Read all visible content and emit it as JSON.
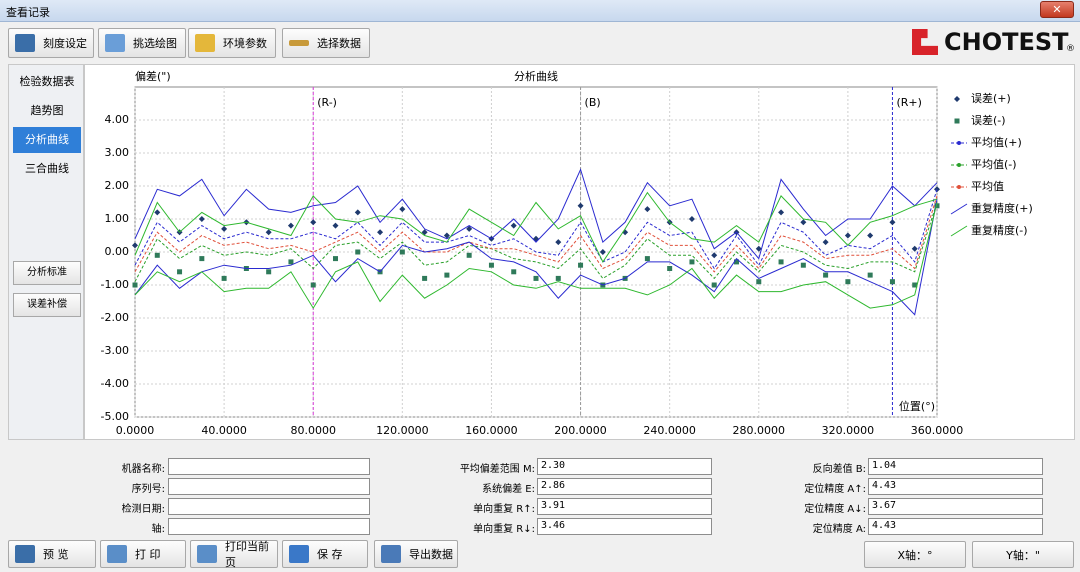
{
  "window": {
    "title": "查看记录"
  },
  "toolbar": [
    "刻度设定",
    "挑选绘图",
    "环境参数",
    "选择数据"
  ],
  "logo": "CHOTEST",
  "logo_mark": "®",
  "sidebar": {
    "tabs": [
      "检验数据表",
      "趋势图",
      "分析曲线",
      "三合曲线"
    ],
    "selected": 2,
    "buttons": [
      "分析标准",
      "误差补偿"
    ]
  },
  "chart_data": {
    "type": "line",
    "title": "分析曲线",
    "y_label": "偏差(\")",
    "x_label": "位置(°)",
    "x": [
      0,
      10,
      20,
      30,
      40,
      50,
      60,
      70,
      80,
      90,
      100,
      110,
      120,
      130,
      140,
      150,
      160,
      170,
      180,
      190,
      200,
      210,
      220,
      230,
      240,
      250,
      260,
      270,
      280,
      290,
      300,
      310,
      320,
      330,
      340,
      350,
      360
    ],
    "xlim": [
      0,
      360
    ],
    "xticks": [
      {
        "value": 0,
        "label": "0.0000"
      },
      {
        "value": 40,
        "label": "40.0000"
      },
      {
        "value": 80,
        "label": "80.0000"
      },
      {
        "value": 120,
        "label": "120.0000"
      },
      {
        "value": 160,
        "label": "160.0000"
      },
      {
        "value": 200,
        "label": "200.0000"
      },
      {
        "value": 240,
        "label": "240.0000"
      },
      {
        "value": 280,
        "label": "280.0000"
      },
      {
        "value": 320,
        "label": "320.0000"
      },
      {
        "value": 360,
        "label": "360.0000"
      }
    ],
    "ylim": [
      -5,
      5
    ],
    "yticks": [
      {
        "value": 4,
        "label": "4.00"
      },
      {
        "value": 3,
        "label": "3.00"
      },
      {
        "value": 2,
        "label": "2.00"
      },
      {
        "value": 1,
        "label": "1.00"
      },
      {
        "value": 0,
        "label": "0.00"
      },
      {
        "value": -1,
        "label": "-1.00"
      },
      {
        "value": -2,
        "label": "-2.00"
      },
      {
        "value": -3,
        "label": "-3.00"
      },
      {
        "value": -4,
        "label": "-4.00"
      },
      {
        "value": -5,
        "label": "-5.00"
      }
    ],
    "grid": true,
    "markers": [
      {
        "label": "(R-)",
        "x": 80,
        "color": "#d63ad6"
      },
      {
        "label": "(B)",
        "x": 200,
        "color": "#999999"
      },
      {
        "label": "(R+)",
        "x": 340,
        "color": "#2a2ad0"
      }
    ],
    "series": [
      {
        "name": "误差(+)",
        "color": "#1f3a6e",
        "style": "diamond",
        "values": [
          0.2,
          1.2,
          0.6,
          1.0,
          0.7,
          0.9,
          0.6,
          0.8,
          0.9,
          0.8,
          1.2,
          0.6,
          1.3,
          0.6,
          0.5,
          0.7,
          0.4,
          0.8,
          0.4,
          0.3,
          1.4,
          0.0,
          0.6,
          1.3,
          0.9,
          1.0,
          -0.1,
          0.6,
          0.1,
          1.2,
          0.9,
          0.3,
          0.5,
          0.5,
          0.9,
          0.1,
          1.9
        ]
      },
      {
        "name": "误差(-)",
        "color": "#2f7a5a",
        "style": "square",
        "values": [
          -1.0,
          -0.1,
          -0.6,
          -0.2,
          -0.8,
          -0.5,
          -0.6,
          -0.3,
          -1.0,
          -0.2,
          0.0,
          -0.6,
          0.0,
          -0.8,
          -0.7,
          -0.1,
          -0.4,
          -0.6,
          -0.8,
          -0.8,
          -0.4,
          -1.0,
          -0.8,
          -0.2,
          -0.5,
          -0.3,
          -1.0,
          -0.3,
          -0.9,
          -0.3,
          -0.4,
          -0.7,
          -0.9,
          -0.7,
          -0.9,
          -1.0,
          1.4
        ]
      },
      {
        "name": "平均值(+)",
        "color": "#2a2ad0",
        "style": "dashed",
        "values": [
          -0.4,
          0.9,
          0.3,
          0.8,
          0.4,
          0.6,
          0.4,
          0.4,
          0.6,
          0.4,
          0.9,
          0.2,
          0.9,
          0.3,
          0.3,
          0.5,
          0.2,
          0.4,
          0.0,
          -0.1,
          0.9,
          -0.3,
          0.0,
          0.9,
          0.5,
          0.6,
          -0.5,
          0.5,
          -0.4,
          0.9,
          0.6,
          -0.1,
          0.2,
          0.1,
          0.5,
          -0.3,
          1.9
        ]
      },
      {
        "name": "平均值(-)",
        "color": "#2aa02a",
        "style": "dashed",
        "values": [
          -0.9,
          0.4,
          -0.2,
          0.2,
          -0.1,
          0.0,
          -0.1,
          0.1,
          -0.5,
          0.2,
          0.3,
          -0.2,
          0.3,
          -0.4,
          -0.3,
          0.2,
          0.1,
          -0.2,
          -0.3,
          -0.5,
          0.1,
          -0.8,
          -0.4,
          0.4,
          -0.1,
          -0.1,
          -0.8,
          0.0,
          -0.6,
          0.2,
          0.0,
          -0.4,
          -0.5,
          -0.3,
          -0.3,
          -0.6,
          1.5
        ]
      },
      {
        "name": "平均值",
        "color": "#e0503a",
        "style": "dashed",
        "values": [
          -0.6,
          0.6,
          0.0,
          0.5,
          0.2,
          0.3,
          0.1,
          0.2,
          0.0,
          0.3,
          0.6,
          0.0,
          0.6,
          0.0,
          0.0,
          0.3,
          0.1,
          0.1,
          -0.1,
          -0.3,
          0.5,
          -0.5,
          -0.2,
          0.6,
          0.2,
          0.2,
          -0.6,
          0.2,
          -0.5,
          0.5,
          0.3,
          -0.2,
          -0.1,
          -0.1,
          0.1,
          -0.5,
          1.7
        ]
      },
      {
        "name": "重复精度(+)",
        "color": "#2a2ad0",
        "style": "band",
        "upper": [
          0.4,
          1.9,
          1.7,
          2.2,
          1.1,
          1.9,
          1.3,
          1.2,
          1.4,
          1.5,
          2.0,
          0.9,
          1.6,
          0.7,
          0.4,
          0.8,
          0.4,
          1.0,
          0.3,
          1.0,
          2.5,
          0.3,
          0.9,
          2.1,
          1.4,
          1.6,
          0.1,
          0.6,
          -0.2,
          2.2,
          1.3,
          0.5,
          1.0,
          1.0,
          2.0,
          1.4,
          2.1
        ],
        "lower": [
          -1.3,
          -0.4,
          -1.1,
          -0.6,
          -0.4,
          -0.5,
          -0.5,
          -0.4,
          -0.1,
          -0.9,
          -0.2,
          -0.6,
          0.2,
          0.0,
          0.1,
          0.3,
          -0.2,
          -0.3,
          -0.6,
          -1.4,
          -0.7,
          -1.0,
          -0.8,
          -0.3,
          -0.3,
          -0.7,
          -1.2,
          -0.2,
          -0.8,
          -0.5,
          -0.2,
          -0.6,
          -0.6,
          -0.9,
          -1.2,
          -1.9,
          1.6
        ]
      },
      {
        "name": "重复精度(-)",
        "color": "#2eb82e",
        "style": "band",
        "upper": [
          -0.1,
          1.5,
          0.6,
          1.2,
          0.8,
          0.9,
          0.7,
          0.5,
          1.7,
          1.0,
          0.9,
          1.1,
          1.0,
          0.5,
          0.3,
          1.3,
          0.9,
          0.5,
          1.5,
          0.7,
          1.1,
          -0.3,
          0.7,
          1.8,
          0.9,
          0.4,
          0.3,
          0.8,
          0.3,
          1.7,
          1.0,
          0.9,
          0.2,
          0.9,
          1.1,
          1.4,
          1.6
        ],
        "lower": [
          -1.3,
          -0.6,
          -0.9,
          -0.6,
          -1.2,
          -1.1,
          -1.1,
          -0.6,
          -1.7,
          -0.6,
          -0.3,
          -1.5,
          -0.7,
          -1.4,
          -1.0,
          -0.5,
          -0.6,
          -1.0,
          -1.1,
          -0.9,
          -1.1,
          -1.1,
          -1.1,
          -1.3,
          -1.0,
          -0.5,
          -1.4,
          -0.7,
          -1.2,
          -1.2,
          -1.0,
          -0.9,
          -1.3,
          -1.7,
          -1.6,
          -1.3,
          1.5
        ]
      }
    ]
  },
  "info": {
    "columns": [
      [
        {
          "label": "机器名称:"
        },
        {
          "label": "序列号:"
        },
        {
          "label": "检测日期:"
        },
        {
          "label": "轴:"
        }
      ],
      [
        {
          "label": "平均偏差范围 M:",
          "value": "2.30"
        },
        {
          "label": "系统偏差 E:",
          "value": "2.86"
        },
        {
          "label": "单向重复 R↑:",
          "value": "3.91"
        },
        {
          "label": "单向重复 R↓:",
          "value": "3.46"
        }
      ],
      [
        {
          "label": "反向差值 B:",
          "value": "1.04"
        },
        {
          "label": "定位精度 A↑:",
          "value": "4.43"
        },
        {
          "label": "定位精度 A↓:",
          "value": "3.67"
        },
        {
          "label": "定位精度 A:",
          "value": "4.43"
        }
      ]
    ]
  },
  "bottom_buttons": [
    "预 览",
    "打 印",
    "打印当前页",
    "保 存",
    "导出数据"
  ],
  "status": [
    "X轴：°",
    "Y轴：\""
  ]
}
